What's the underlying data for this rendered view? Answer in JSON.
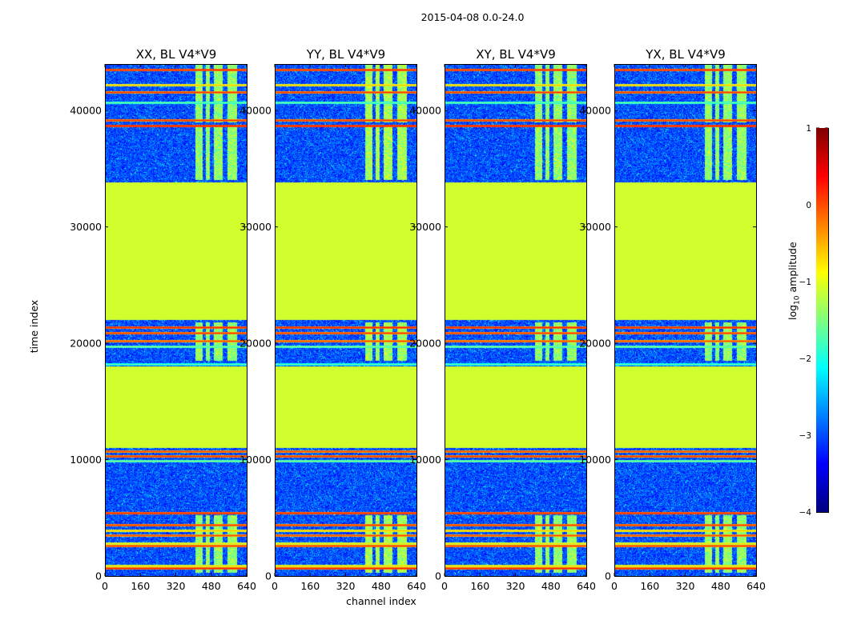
{
  "figure": {
    "suptitle": "2015-04-08 0.0-24.0",
    "ylabel": "time index",
    "xlabel": "channel index",
    "colorbar_label": "log10 amplitude"
  },
  "chart_data": {
    "type": "heatmap",
    "colormap": "jet",
    "panels": [
      {
        "title": "XX, BL V4*V9",
        "correlation": "XX"
      },
      {
        "title": "YY, BL V4*V9",
        "correlation": "YY"
      },
      {
        "title": "XY, BL V4*V9",
        "correlation": "XY"
      },
      {
        "title": "YX, BL V4*V9",
        "correlation": "YX"
      }
    ],
    "x_axis": {
      "label": "channel index",
      "range": [
        0,
        640
      ],
      "ticks": [
        0,
        160,
        320,
        480,
        640
      ]
    },
    "y_axis": {
      "label": "time index",
      "range": [
        0,
        44000
      ],
      "ticks": [
        0,
        10000,
        20000,
        30000,
        40000
      ]
    },
    "colorbar": {
      "label": "log10 amplitude",
      "range": [
        -4,
        1
      ],
      "ticks": [
        -4,
        -3,
        -2,
        -1,
        0,
        1
      ]
    },
    "background_level": -3,
    "flagged_blocks": [
      {
        "t0": 11000,
        "t1": 18000,
        "value": -1.1
      },
      {
        "t0": 22000,
        "t1": 33800,
        "value": -1.1
      }
    ],
    "rfi_channel_bands": [
      [
        410,
        440
      ],
      [
        455,
        475
      ],
      [
        490,
        530
      ],
      [
        555,
        595
      ]
    ],
    "rfi_time_ranges": [
      [
        300,
        5200
      ],
      [
        18500,
        21800
      ],
      [
        34000,
        38600
      ],
      [
        39000,
        44000
      ]
    ],
    "horizontal_lines": [
      {
        "t": 700,
        "value": 0.3
      },
      {
        "t": 900,
        "value": -0.6
      },
      {
        "t": 2600,
        "value": 0.2
      },
      {
        "t": 2800,
        "value": -0.7
      },
      {
        "t": 3500,
        "value": 0.1
      },
      {
        "t": 3900,
        "value": -0.5
      },
      {
        "t": 4400,
        "value": 0.2
      },
      {
        "t": 5400,
        "value": 0.3
      },
      {
        "t": 9900,
        "value": -1.4
      },
      {
        "t": 10300,
        "value": 0.2
      },
      {
        "t": 10700,
        "value": 0.1
      },
      {
        "t": 18200,
        "value": -1.6
      },
      {
        "t": 19700,
        "value": -1.4
      },
      {
        "t": 20200,
        "value": 0.1
      },
      {
        "t": 20900,
        "value": 0.2
      },
      {
        "t": 21400,
        "value": 0.3
      },
      {
        "t": 38700,
        "value": 0.4
      },
      {
        "t": 39200,
        "value": 0.2
      },
      {
        "t": 40700,
        "value": -1.5
      },
      {
        "t": 41600,
        "value": 0.2
      },
      {
        "t": 42200,
        "value": -0.5
      },
      {
        "t": 43500,
        "value": 0.3
      }
    ]
  }
}
